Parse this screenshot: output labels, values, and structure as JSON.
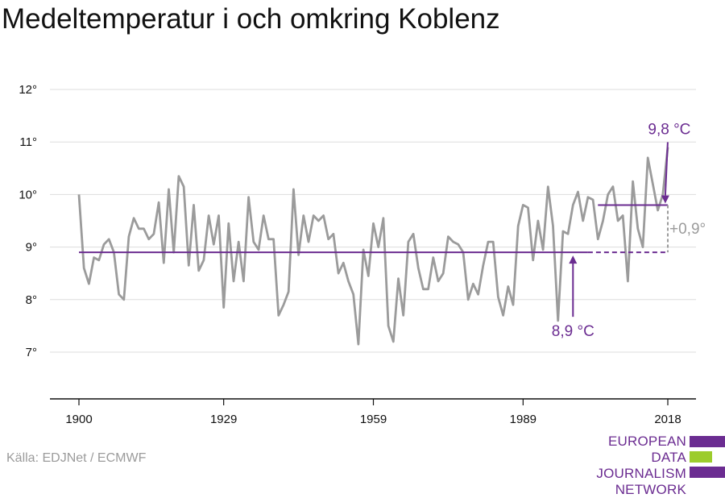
{
  "title": "Medeltemperatur i och omkring Koblenz",
  "source": "Källa: EDJNet / ECMWF",
  "logo": {
    "line1": "EUROPEAN",
    "line2": "DATA JOURNALISM",
    "line3": "NETWORK",
    "colors": {
      "primary": "#6b2c91",
      "accent": "#9ccc2c"
    }
  },
  "chart_data": {
    "type": "line",
    "title": "Medeltemperatur i och omkring Koblenz",
    "xlabel": "",
    "ylabel": "",
    "xlim": [
      1900,
      2018
    ],
    "ylim": [
      6,
      12.5
    ],
    "x_ticks": [
      1900,
      1929,
      1959,
      1989,
      2018
    ],
    "y_ticks": [
      7,
      8,
      9,
      10,
      11,
      12
    ],
    "y_tick_labels": [
      "7°",
      "8°",
      "9°",
      "10°",
      "11°",
      "12°"
    ],
    "grid": true,
    "series": [
      {
        "color": "#9b9b9b",
        "x": [
          1900,
          1901,
          1902,
          1903,
          1904,
          1905,
          1906,
          1907,
          1908,
          1909,
          1910,
          1911,
          1912,
          1913,
          1914,
          1915,
          1916,
          1917,
          1918,
          1919,
          1920,
          1921,
          1922,
          1923,
          1924,
          1925,
          1926,
          1927,
          1928,
          1929,
          1930,
          1931,
          1932,
          1933,
          1934,
          1935,
          1936,
          1937,
          1938,
          1939,
          1940,
          1941,
          1942,
          1943,
          1944,
          1945,
          1946,
          1947,
          1948,
          1949,
          1950,
          1951,
          1952,
          1953,
          1954,
          1955,
          1956,
          1957,
          1958,
          1959,
          1960,
          1961,
          1962,
          1963,
          1964,
          1965,
          1966,
          1967,
          1968,
          1969,
          1970,
          1971,
          1972,
          1973,
          1974,
          1975,
          1976,
          1977,
          1978,
          1979,
          1980,
          1981,
          1982,
          1983,
          1984,
          1985,
          1986,
          1987,
          1988,
          1989,
          1990,
          1991,
          1992,
          1993,
          1994,
          1995,
          1996,
          1997,
          1998,
          1999,
          2000,
          2001,
          2002,
          2003,
          2004,
          2005,
          2006,
          2007,
          2008,
          2009,
          2010,
          2011,
          2012,
          2013,
          2014,
          2015,
          2016,
          2017,
          2018
        ],
        "y": [
          10.0,
          8.6,
          8.3,
          8.8,
          8.75,
          9.05,
          9.15,
          8.9,
          8.1,
          8.0,
          9.2,
          9.55,
          9.35,
          9.35,
          9.15,
          9.25,
          9.85,
          8.7,
          10.1,
          8.9,
          10.35,
          10.15,
          8.65,
          9.8,
          8.55,
          8.75,
          9.6,
          9.05,
          9.6,
          7.85,
          9.45,
          8.35,
          9.1,
          8.35,
          9.95,
          9.1,
          8.95,
          9.6,
          9.15,
          9.15,
          7.7,
          7.9,
          8.15,
          10.1,
          8.85,
          9.6,
          9.1,
          9.6,
          9.5,
          9.6,
          9.15,
          9.25,
          8.5,
          8.7,
          8.35,
          8.1,
          7.15,
          8.95,
          8.45,
          9.45,
          9.0,
          9.55,
          7.5,
          7.2,
          8.4,
          7.7,
          9.1,
          9.25,
          8.6,
          8.2,
          8.2,
          8.8,
          8.35,
          8.5,
          9.2,
          9.1,
          9.05,
          8.9,
          8.0,
          8.3,
          8.1,
          8.65,
          9.1,
          9.1,
          8.05,
          7.7,
          8.25,
          7.9,
          9.4,
          9.8,
          9.75,
          8.75,
          9.5,
          8.95,
          10.15,
          9.4,
          7.6,
          9.3,
          9.25,
          9.8,
          10.05,
          9.5,
          9.95,
          9.9,
          9.15,
          9.5,
          10.0,
          10.15,
          9.5,
          9.6,
          8.35,
          10.25,
          9.35,
          9.0,
          10.7,
          10.2,
          9.7,
          10.0,
          10.9
        ]
      }
    ],
    "reference_lines": [
      {
        "label": "8,9 °C",
        "value": 8.9,
        "color": "#6b2c91"
      },
      {
        "label": "9,8 °C",
        "value": 9.8,
        "color": "#6b2c91"
      }
    ],
    "difference_label": "+0,9°"
  }
}
